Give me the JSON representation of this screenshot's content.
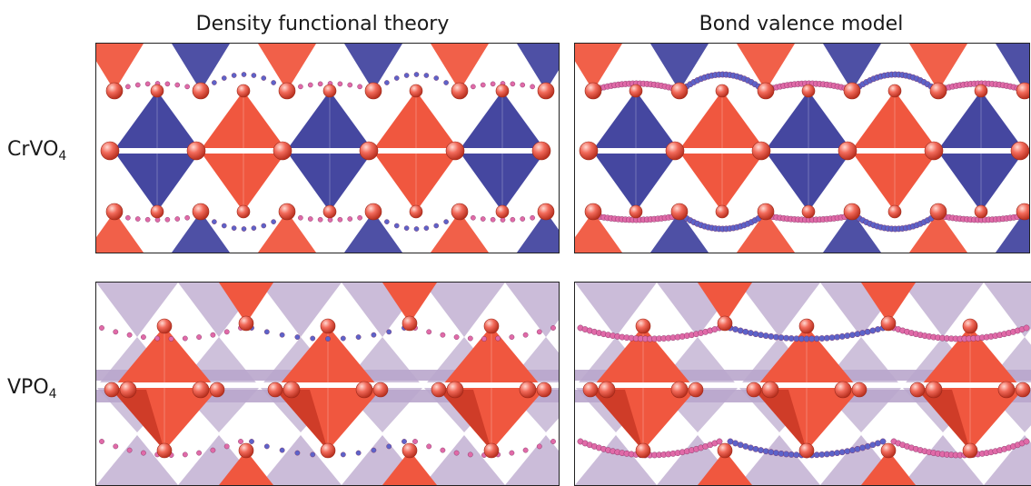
{
  "columns": {
    "dft": "Density functional theory",
    "bv": "Bond valence model"
  },
  "rows": {
    "crvo4": {
      "base": "CrVO",
      "sub": "4"
    },
    "vpo4": {
      "base": "VPO",
      "sub": "4"
    }
  },
  "colors": {
    "red_polyhedron": "#f0573f",
    "red_dark": "#c0301f",
    "blue_polyhedron": "#4547a0",
    "lilac_polyhedron": "#b9a6cc",
    "atom": "#f26a5a",
    "path_pink": "#e06aa8",
    "path_blue": "#5d63c9"
  }
}
